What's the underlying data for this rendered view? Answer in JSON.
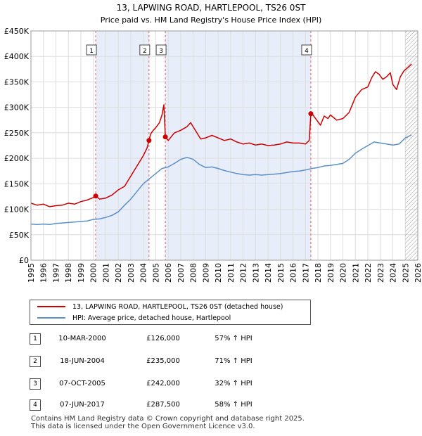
{
  "chart_data": {
    "type": "line",
    "title": "13, LAPWING ROAD, HARTLEPOOL, TS26 0ST",
    "subtitle": "Price paid vs. HM Land Registry's House Price Index (HPI)",
    "xlim": [
      1995,
      2026
    ],
    "ylim": [
      0,
      450000
    ],
    "x_ticks": [
      "1995",
      "1996",
      "1997",
      "1998",
      "1999",
      "2000",
      "2001",
      "2002",
      "2003",
      "2004",
      "2005",
      "2006",
      "2007",
      "2008",
      "2009",
      "2010",
      "2011",
      "2012",
      "2013",
      "2014",
      "2015",
      "2016",
      "2017",
      "2018",
      "2019",
      "2020",
      "2021",
      "2022",
      "2023",
      "2024",
      "2025",
      "2026"
    ],
    "y_ticks": [
      {
        "value": 0,
        "label": "£0"
      },
      {
        "value": 50000,
        "label": "£50K"
      },
      {
        "value": 100000,
        "label": "£100K"
      },
      {
        "value": 150000,
        "label": "£150K"
      },
      {
        "value": 200000,
        "label": "£200K"
      },
      {
        "value": 250000,
        "label": "£250K"
      },
      {
        "value": 300000,
        "label": "£300K"
      },
      {
        "value": 350000,
        "label": "£350K"
      },
      {
        "value": 400000,
        "label": "£400K"
      },
      {
        "value": 450000,
        "label": "£450K"
      }
    ],
    "grid": true,
    "shaded_ranges": [
      [
        2000.19,
        2004.46
      ],
      [
        2005.77,
        2017.43
      ]
    ],
    "hatched_from": 2025.0,
    "series": [
      {
        "name": "13, LAPWING ROAD, HARTLEPOOL, TS26 0ST (detached house)",
        "color": "#cc0000",
        "x": [
          1995.0,
          1995.5,
          1996.0,
          1996.5,
          1997.0,
          1997.5,
          1998.0,
          1998.5,
          1999.0,
          1999.5,
          2000.0,
          2000.19,
          2000.5,
          2001.0,
          2001.5,
          2002.0,
          2002.5,
          2003.0,
          2003.5,
          2004.0,
          2004.3,
          2004.46,
          2004.6,
          2004.8,
          2005.0,
          2005.3,
          2005.5,
          2005.65,
          2005.77,
          2006.0,
          2006.5,
          2007.0,
          2007.5,
          2007.8,
          2008.0,
          2008.3,
          2008.6,
          2009.0,
          2009.5,
          2010.0,
          2010.5,
          2011.0,
          2011.5,
          2012.0,
          2012.5,
          2013.0,
          2013.5,
          2014.0,
          2014.5,
          2015.0,
          2015.5,
          2016.0,
          2016.5,
          2017.0,
          2017.3,
          2017.43,
          2017.6,
          2017.9,
          2018.2,
          2018.5,
          2018.8,
          2019.0,
          2019.5,
          2020.0,
          2020.5,
          2021.0,
          2021.5,
          2022.0,
          2022.3,
          2022.6,
          2022.9,
          2023.2,
          2023.5,
          2023.8,
          2024.0,
          2024.3,
          2024.6,
          2024.9,
          2025.2,
          2025.5
        ],
        "values": [
          112000,
          108000,
          110000,
          105000,
          107000,
          108000,
          112000,
          110000,
          115000,
          118000,
          123000,
          126000,
          120000,
          122000,
          128000,
          138000,
          145000,
          165000,
          185000,
          205000,
          220000,
          235000,
          248000,
          255000,
          260000,
          270000,
          285000,
          305000,
          242000,
          235000,
          250000,
          255000,
          262000,
          270000,
          262000,
          250000,
          238000,
          240000,
          245000,
          240000,
          235000,
          238000,
          232000,
          228000,
          230000,
          226000,
          228000,
          225000,
          226000,
          228000,
          232000,
          230000,
          230000,
          228000,
          235000,
          287500,
          285000,
          275000,
          265000,
          283000,
          278000,
          285000,
          275000,
          278000,
          290000,
          320000,
          335000,
          340000,
          358000,
          370000,
          365000,
          355000,
          360000,
          368000,
          345000,
          335000,
          360000,
          372000,
          378000,
          385000
        ]
      },
      {
        "name": "HPI: Average price, detached house, Hartlepool",
        "color": "#5b8fc9",
        "x": [
          1995.0,
          1995.5,
          1996.0,
          1996.5,
          1997.0,
          1997.5,
          1998.0,
          1998.5,
          1999.0,
          1999.5,
          2000.0,
          2000.5,
          2001.0,
          2001.5,
          2002.0,
          2002.5,
          2003.0,
          2003.5,
          2004.0,
          2004.5,
          2005.0,
          2005.5,
          2006.0,
          2006.5,
          2007.0,
          2007.5,
          2008.0,
          2008.5,
          2009.0,
          2009.5,
          2010.0,
          2010.5,
          2011.0,
          2011.5,
          2012.0,
          2012.5,
          2013.0,
          2013.5,
          2014.0,
          2014.5,
          2015.0,
          2015.5,
          2016.0,
          2016.5,
          2017.0,
          2017.5,
          2018.0,
          2018.5,
          2019.0,
          2019.5,
          2020.0,
          2020.5,
          2021.0,
          2021.5,
          2022.0,
          2022.5,
          2023.0,
          2023.5,
          2024.0,
          2024.5,
          2025.0,
          2025.5
        ],
        "values": [
          71000,
          70000,
          71000,
          70000,
          72000,
          73000,
          74000,
          75000,
          76000,
          77000,
          80000,
          81000,
          84000,
          88000,
          95000,
          108000,
          120000,
          135000,
          150000,
          160000,
          170000,
          180000,
          183000,
          190000,
          198000,
          202000,
          198000,
          188000,
          182000,
          183000,
          180000,
          176000,
          173000,
          170000,
          168000,
          167000,
          168000,
          167000,
          168000,
          169000,
          170000,
          172000,
          174000,
          175000,
          177000,
          180000,
          182000,
          185000,
          186000,
          188000,
          190000,
          198000,
          210000,
          218000,
          225000,
          232000,
          230000,
          228000,
          226000,
          228000,
          240000,
          246000
        ]
      }
    ],
    "transactions": [
      {
        "id": "1",
        "year": 2000.19,
        "price": 126000,
        "date": "10-MAR-2000",
        "price_label": "£126,000",
        "hpi_change": "57% ↑ HPI"
      },
      {
        "id": "2",
        "year": 2004.46,
        "price": 235000,
        "date": "18-JUN-2004",
        "price_label": "£235,000",
        "hpi_change": "71% ↑ HPI"
      },
      {
        "id": "3",
        "year": 2005.77,
        "price": 242000,
        "date": "07-OCT-2005",
        "price_label": "£242,000",
        "hpi_change": "32% ↑ HPI"
      },
      {
        "id": "4",
        "year": 2017.43,
        "price": 287500,
        "date": "07-JUN-2017",
        "price_label": "£287,500",
        "hpi_change": "58% ↑ HPI"
      }
    ]
  },
  "legend": {
    "property_label": "13, LAPWING ROAD, HARTLEPOOL, TS26 0ST (detached house)",
    "hpi_label": "HPI: Average price, detached house, Hartlepool"
  },
  "footer": {
    "line1": "Contains HM Land Registry data © Crown copyright and database right 2025.",
    "line2": "This data is licensed under the Open Government Licence v3.0."
  }
}
